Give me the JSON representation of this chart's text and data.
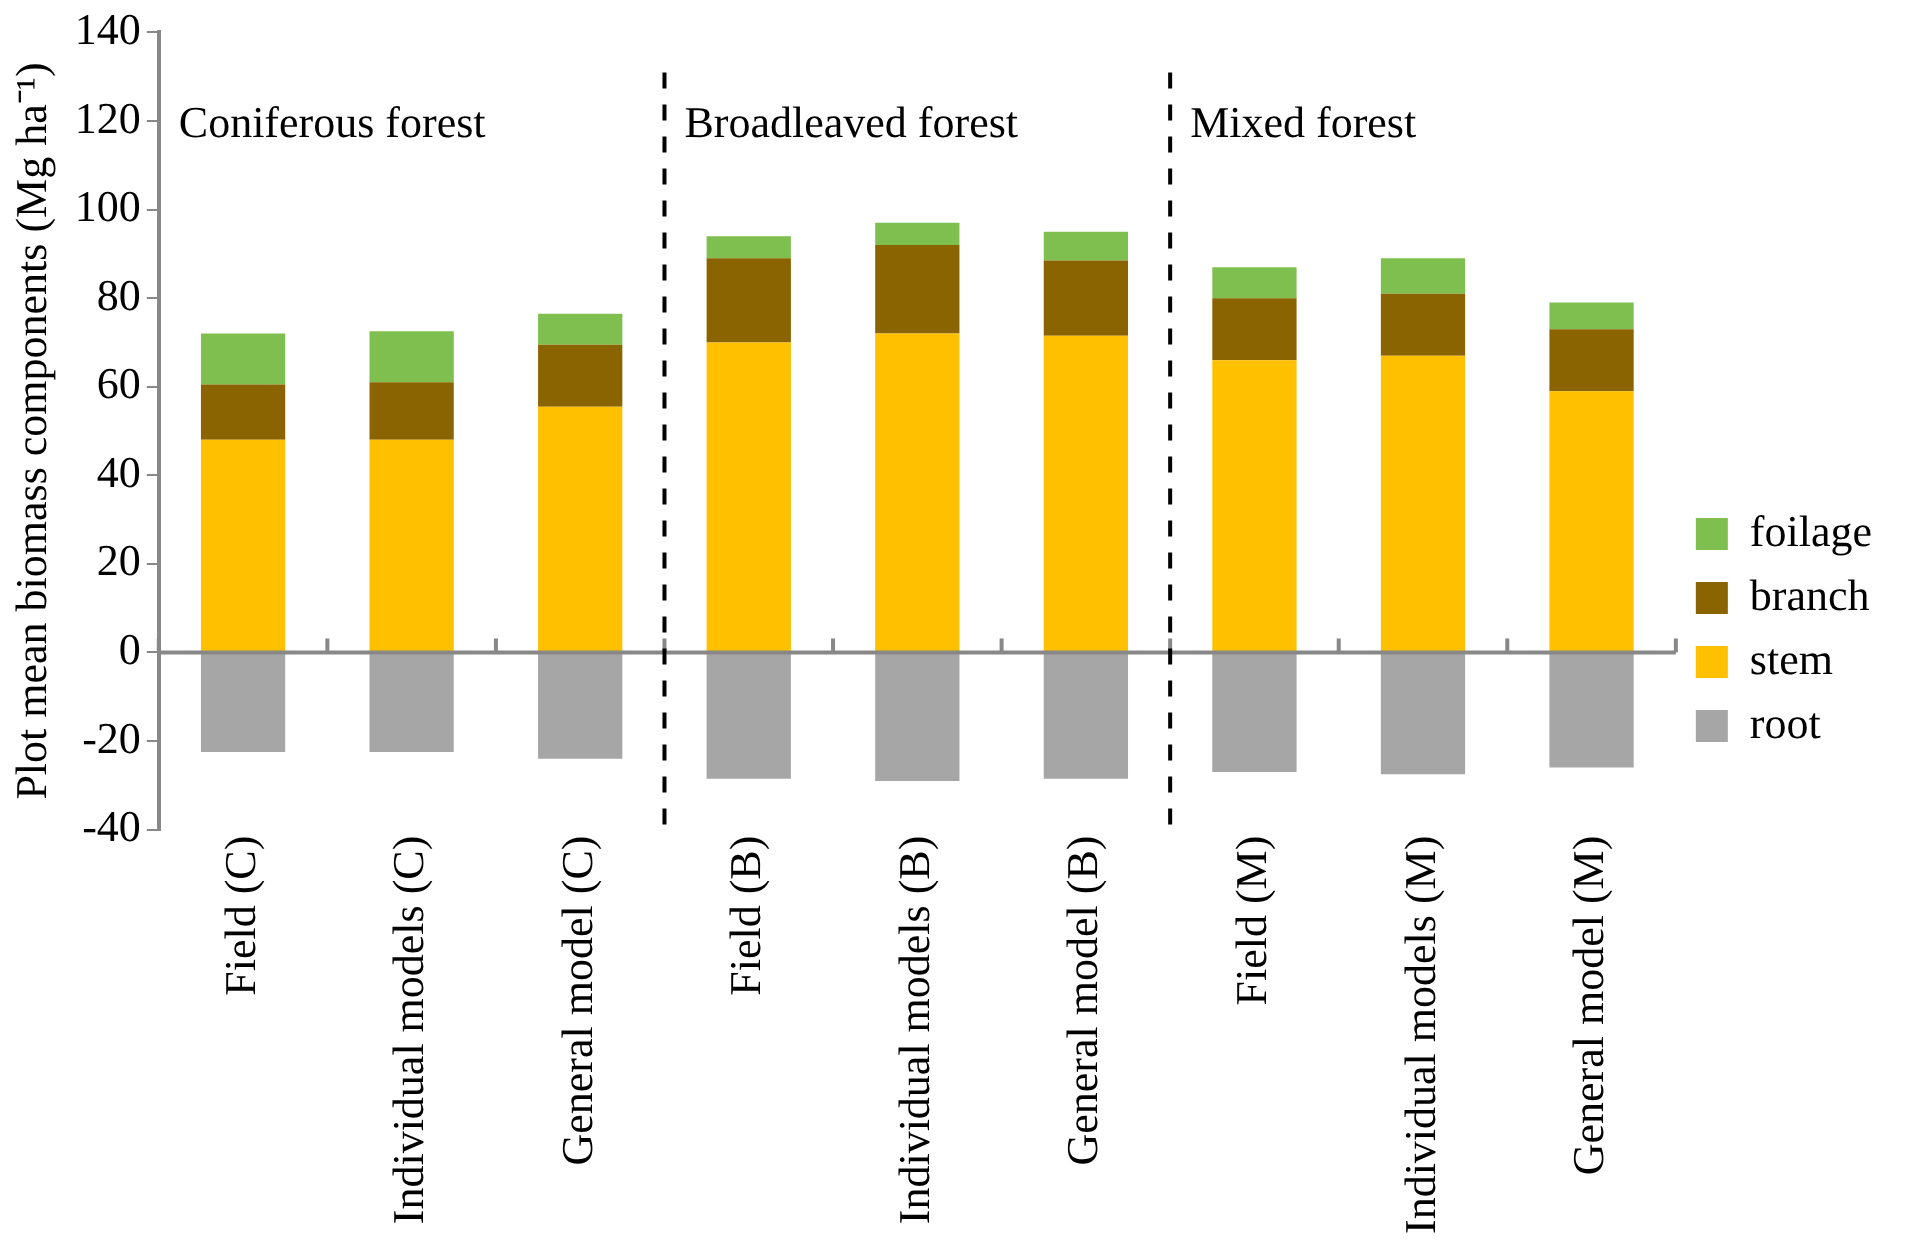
{
  "chart_data": {
    "type": "bar",
    "stacked": true,
    "ylabel": "Plot mean biomass components (Mg ha⁻¹)",
    "categories": [
      "Field (C)",
      "Individual models (C)",
      "General model (C)",
      "Field (B)",
      "Individual models (B)",
      "General model (B)",
      "Field (M)",
      "Individual models (M)",
      "General model (M)"
    ],
    "series": [
      {
        "name": "root",
        "color": "#a6a6a6",
        "values": [
          -22.5,
          -22.5,
          -24,
          -28.5,
          -29,
          -28.5,
          -27,
          -27.5,
          -26
        ]
      },
      {
        "name": "stem",
        "color": "#ffc000",
        "values": [
          48,
          48,
          55.5,
          70,
          72,
          71.5,
          66,
          67,
          59
        ]
      },
      {
        "name": "branch",
        "color": "#8a6400",
        "values": [
          12.5,
          13,
          14,
          19,
          20,
          17,
          14,
          14,
          14
        ]
      },
      {
        "name": "foilage",
        "color": "#7fbf4f",
        "values": [
          11.5,
          11.5,
          7,
          5,
          5,
          6.5,
          7,
          8,
          6
        ]
      }
    ],
    "ylim": [
      -40,
      140
    ],
    "yticks": [
      -40,
      -20,
      0,
      20,
      40,
      60,
      80,
      100,
      120,
      140
    ],
    "grid": false,
    "legend": "right",
    "annotations": [
      "Coniferous forest",
      "Broadleaved forest",
      "Mixed forest"
    ]
  }
}
